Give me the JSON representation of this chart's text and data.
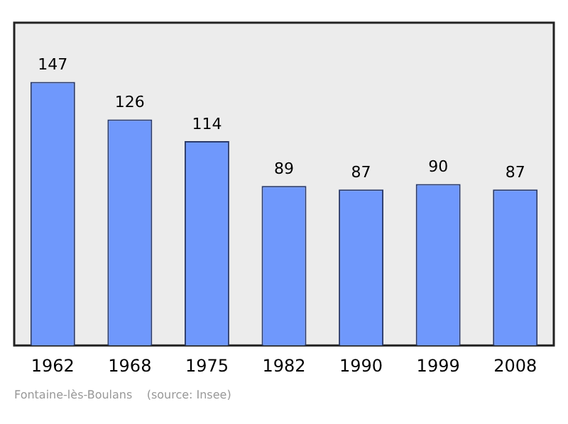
{
  "chart_data": {
    "type": "bar",
    "categories": [
      "1962",
      "1968",
      "1975",
      "1982",
      "1990",
      "1999",
      "2008"
    ],
    "values": [
      147,
      126,
      114,
      89,
      87,
      90,
      87
    ],
    "color": "#6f98fc",
    "data_labels": true,
    "grid": false,
    "legend": false,
    "annotations": [
      "Fontaine-lès-Boulans    (source: Insee)"
    ]
  }
}
